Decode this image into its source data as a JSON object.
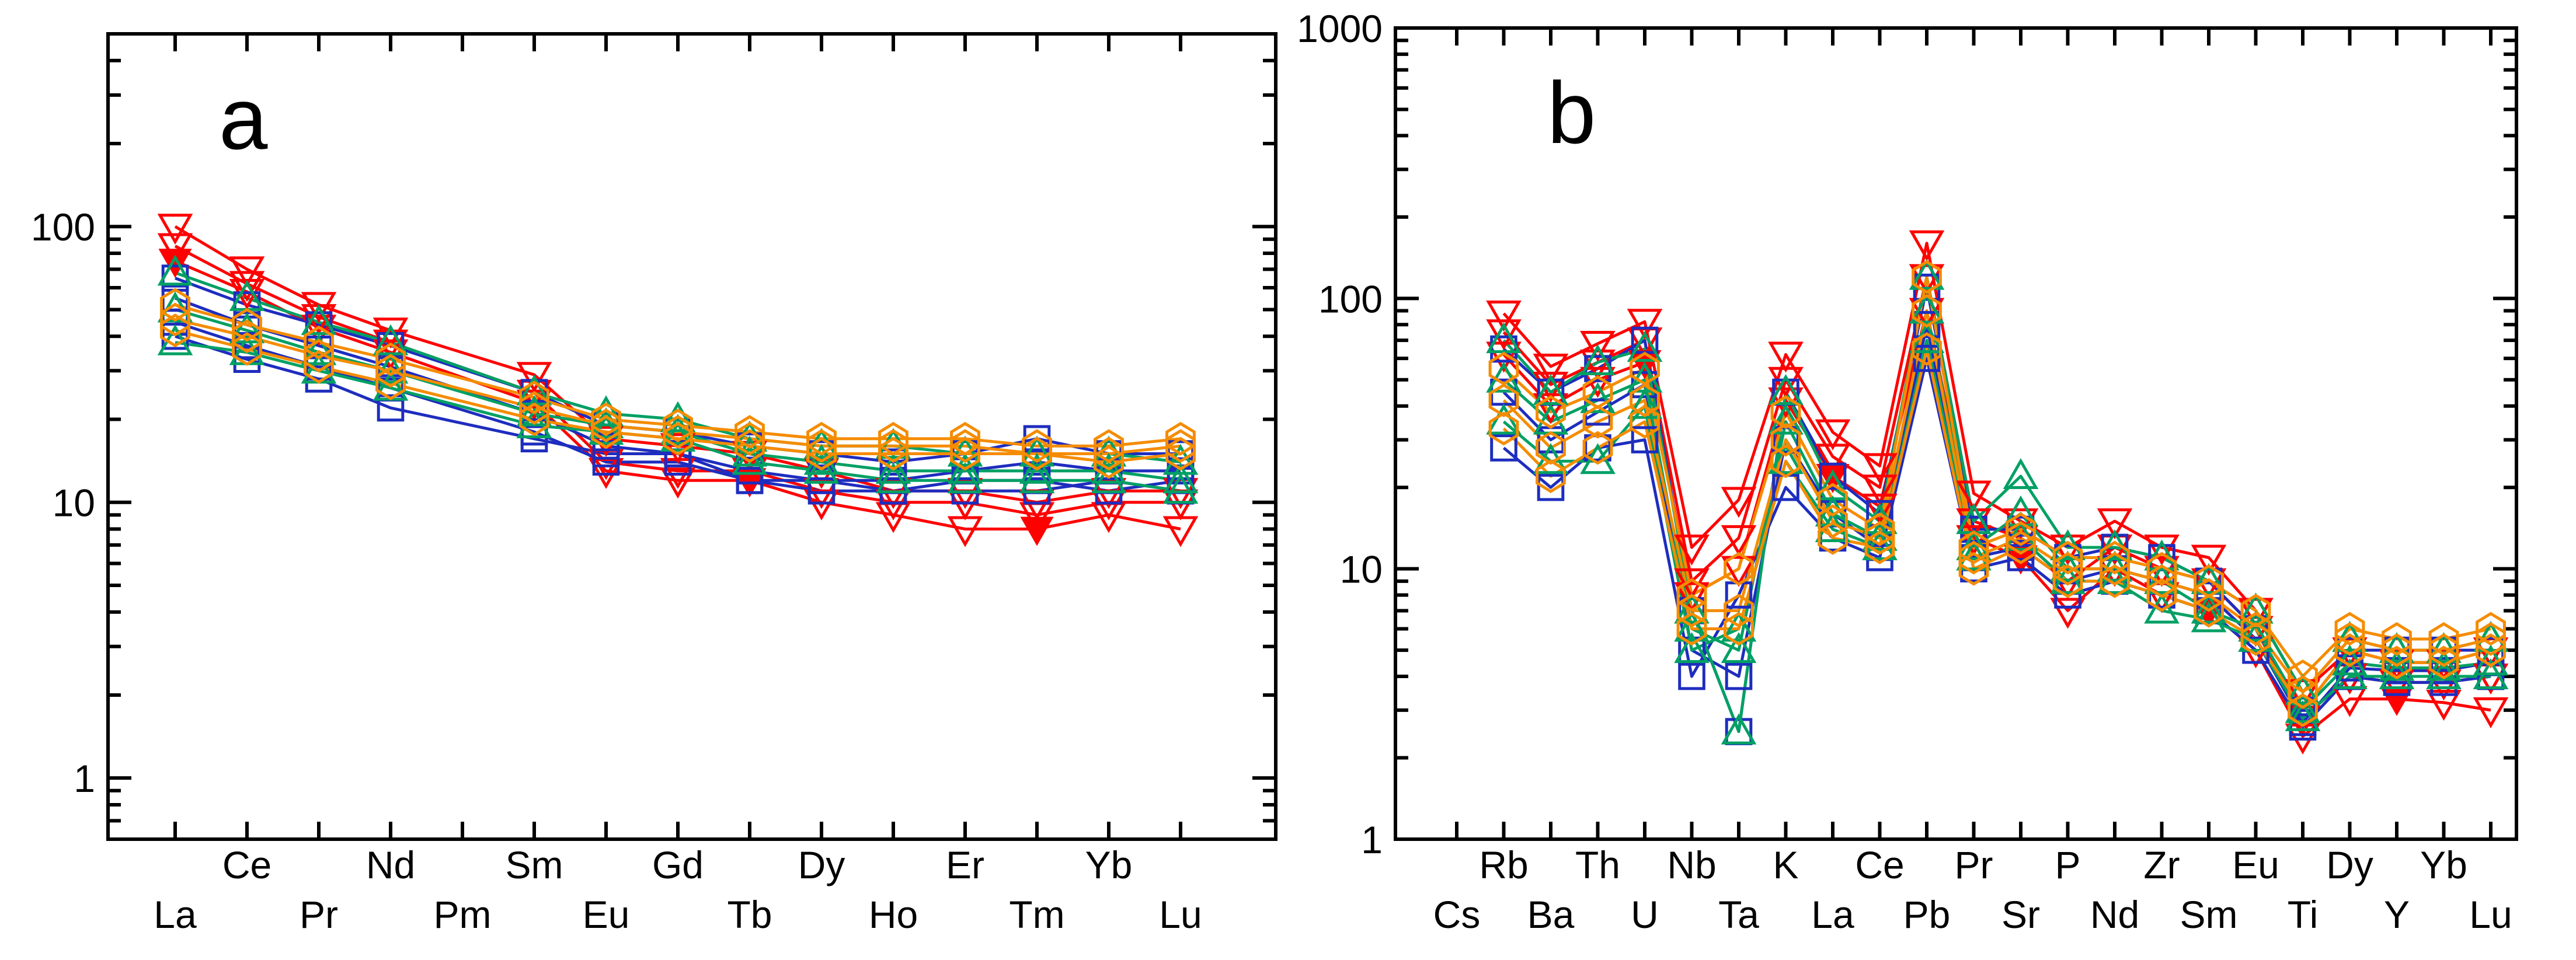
{
  "chart_data": [
    {
      "type": "line",
      "panel_label": "a",
      "yscale": "log",
      "ylim": [
        0.6,
        500
      ],
      "yticks": [
        1,
        10,
        100
      ],
      "ytick_labels": [
        "1",
        "10",
        "100"
      ],
      "categories": [
        "La",
        "Ce",
        "Pr",
        "Nd",
        "Pm",
        "Sm",
        "Eu",
        "Gd",
        "Tb",
        "Dy",
        "Ho",
        "Er",
        "Tm",
        "Yb",
        "Lu"
      ],
      "label_rows": [
        "lower",
        "upper",
        "lower",
        "upper",
        "lower",
        "upper",
        "lower",
        "upper",
        "lower",
        "upper",
        "lower",
        "upper",
        "lower",
        "upper",
        "lower"
      ],
      "series": [
        {
          "name": "red-1",
          "color": "#ff0000",
          "marker": "triangle-down",
          "values": [
            100,
            70,
            52,
            42,
            null,
            29,
            17,
            16,
            15,
            13,
            11,
            11,
            10,
            11,
            11
          ]
        },
        {
          "name": "red-2",
          "color": "#ff0000",
          "marker": "triangle-down",
          "values": [
            85,
            62,
            47,
            38,
            null,
            25,
            14,
            13,
            13,
            11,
            10,
            10,
            9,
            10,
            10
          ]
        },
        {
          "name": "red-3",
          "color": "#ff0000",
          "marker": "triangle-down",
          "values": [
            75,
            58,
            43,
            35,
            null,
            23,
            13,
            12,
            12,
            10,
            9,
            8,
            8,
            9,
            8
          ]
        },
        {
          "name": "blue-1",
          "color": "#1e2dbe",
          "marker": "square",
          "values": [
            65,
            52,
            44,
            37,
            null,
            25,
            19,
            18,
            16,
            15,
            14,
            15,
            17,
            15,
            15
          ]
        },
        {
          "name": "blue-2",
          "color": "#1e2dbe",
          "marker": "square",
          "values": [
            55,
            44,
            37,
            31,
            null,
            21,
            16,
            15,
            13,
            12,
            12,
            13,
            14,
            13,
            13
          ]
        },
        {
          "name": "blue-3",
          "color": "#1e2dbe",
          "marker": "square",
          "values": [
            45,
            37,
            31,
            26,
            null,
            18,
            14,
            14,
            12,
            11,
            11,
            12,
            12,
            11,
            12
          ]
        },
        {
          "name": "blue-4",
          "color": "#1e2dbe",
          "marker": "square",
          "values": [
            40,
            33,
            28,
            22,
            null,
            17,
            15,
            15,
            12,
            12,
            11,
            11,
            11,
            12,
            11
          ]
        },
        {
          "name": "green-1",
          "color": "#00a064",
          "marker": "triangle-up",
          "values": [
            68,
            55,
            45,
            38,
            null,
            25,
            21,
            20,
            17,
            16,
            16,
            15,
            15,
            15,
            14
          ]
        },
        {
          "name": "green-2",
          "color": "#00a064",
          "marker": "triangle-up",
          "values": [
            50,
            42,
            35,
            30,
            null,
            21,
            19,
            18,
            15,
            14,
            13,
            13,
            13,
            13,
            12
          ]
        },
        {
          "name": "green-3",
          "color": "#00a064",
          "marker": "triangle-up",
          "values": [
            38,
            35,
            30,
            26,
            null,
            19,
            18,
            17,
            14,
            13,
            12,
            12,
            12,
            12,
            11
          ]
        },
        {
          "name": "orange-1",
          "color": "#f58c00",
          "marker": "diamond",
          "values": [
            52,
            44,
            38,
            33,
            null,
            24,
            20,
            19,
            18,
            17,
            17,
            17,
            16,
            16,
            17
          ]
        },
        {
          "name": "orange-2",
          "color": "#f58c00",
          "marker": "diamond",
          "values": [
            46,
            40,
            34,
            30,
            null,
            22,
            19,
            18,
            17,
            16,
            16,
            16,
            15,
            15,
            16
          ]
        },
        {
          "name": "orange-3",
          "color": "#f58c00",
          "marker": "diamond",
          "values": [
            42,
            36,
            31,
            27,
            null,
            20,
            18,
            17,
            16,
            15,
            15,
            15,
            15,
            14,
            15
          ]
        }
      ]
    },
    {
      "type": "line",
      "panel_label": "b",
      "yscale": "log",
      "ylim": [
        1,
        1000
      ],
      "yticks": [
        1,
        10,
        100,
        1000
      ],
      "ytick_labels": [
        "1",
        "10",
        "100",
        "1000"
      ],
      "categories": [
        "Cs",
        "Rb",
        "Ba",
        "Th",
        "U",
        "Nb",
        "Ta",
        "K",
        "La",
        "Ce",
        "Pb",
        "Pr",
        "Sr",
        "P",
        "Nd",
        "Zr",
        "Sm",
        "Eu",
        "Ti",
        "Dy",
        "Y",
        "Yb",
        "Lu"
      ],
      "label_rows": [
        "lower",
        "upper",
        "lower",
        "upper",
        "lower",
        "upper",
        "lower",
        "upper",
        "lower",
        "upper",
        "lower",
        "upper",
        "lower",
        "upper",
        "lower",
        "upper",
        "lower",
        "upper",
        "lower",
        "upper",
        "lower",
        "upper",
        "lower"
      ],
      "series": [
        {
          "name": "red-1",
          "color": "#ff0000",
          "marker": "triangle-down",
          "values": [
            null,
            88,
            56,
            68,
            82,
            12,
            18,
            62,
            32,
            24,
            160,
            19,
            15,
            12,
            15,
            12,
            11,
            7,
            3.5,
            5,
            4.5,
            4.5,
            5
          ]
        },
        {
          "name": "red-2",
          "color": "#ff0000",
          "marker": "triangle-down",
          "values": [
            null,
            75,
            48,
            58,
            70,
            9,
            13,
            50,
            26,
            20,
            120,
            15,
            13,
            9,
            12,
            10,
            9,
            6,
            2.8,
            4,
            3.8,
            3.8,
            4
          ]
        },
        {
          "name": "red-3",
          "color": "#ff0000",
          "marker": "triangle-down",
          "values": [
            null,
            62,
            40,
            50,
            58,
            8,
            10,
            42,
            22,
            17,
            90,
            13,
            11,
            7,
            10,
            8,
            7,
            5,
            2.4,
            3.3,
            3.3,
            3.2,
            3
          ]
        },
        {
          "name": "blue-1",
          "color": "#1e2dbe",
          "marker": "square",
          "values": [
            null,
            65,
            45,
            55,
            70,
            7,
            2.5,
            45,
            22,
            16,
            110,
            14,
            14,
            11,
            12,
            11,
            9,
            6,
            3,
            5,
            5,
            5,
            5
          ]
        },
        {
          "name": "blue-2",
          "color": "#1e2dbe",
          "marker": "square",
          "values": [
            null,
            45,
            30,
            38,
            48,
            5,
            4,
            30,
            16,
            12,
            80,
            11,
            12,
            9,
            10,
            9,
            8,
            5.5,
            2.7,
            4.3,
            4.2,
            4.2,
            4.5
          ]
        },
        {
          "name": "blue-3",
          "color": "#1e2dbe",
          "marker": "square",
          "values": [
            null,
            28,
            20,
            28,
            30,
            4,
            8,
            20,
            13,
            11,
            60,
            10,
            11,
            8,
            9,
            8,
            7,
            5,
            2.6,
            4,
            3.8,
            3.8,
            4
          ]
        },
        {
          "name": "green-1",
          "color": "#00a064",
          "marker": "triangle-up",
          "values": [
            null,
            70,
            45,
            58,
            65,
            7,
            2.5,
            45,
            20,
            15,
            120,
            15,
            22,
            12,
            12,
            11,
            9,
            7,
            3.5,
            5.5,
            5,
            5,
            5.5
          ]
        },
        {
          "name": "green-2",
          "color": "#00a064",
          "marker": "triangle-up",
          "values": [
            null,
            50,
            35,
            42,
            50,
            6,
            5,
            35,
            16,
            13,
            90,
            12,
            16,
            10,
            10,
            9,
            7,
            6,
            3,
            4.5,
            4.3,
            4.3,
            4.5
          ]
        },
        {
          "name": "green-3",
          "color": "#00a064",
          "marker": "triangle-up",
          "values": [
            null,
            35,
            25,
            25,
            40,
            5,
            6,
            25,
            14,
            12,
            70,
            11,
            13,
            9,
            9,
            7,
            6.5,
            5.5,
            2.8,
            4,
            4,
            4,
            4
          ]
        },
        {
          "name": "orange-1",
          "color": "#f58c00",
          "marker": "diamond",
          "values": [
            null,
            55,
            38,
            45,
            55,
            8,
            10,
            38,
            18,
            14,
            120,
            12,
            14,
            11,
            11,
            10,
            9,
            7,
            4,
            6,
            5.5,
            5.5,
            6
          ]
        },
        {
          "name": "orange-2",
          "color": "#f58c00",
          "marker": "diamond",
          "values": [
            null,
            42,
            28,
            35,
            42,
            7,
            7,
            30,
            15,
            13,
            90,
            11,
            13,
            10,
            10,
            9,
            8,
            6,
            3.5,
            5.5,
            5,
            5,
            5.5
          ]
        },
        {
          "name": "orange-3",
          "color": "#f58c00",
          "marker": "diamond",
          "values": [
            null,
            33,
            22,
            28,
            35,
            6,
            6,
            25,
            13,
            12,
            65,
            10,
            12,
            9,
            9,
            8,
            7,
            5.5,
            3,
            5,
            4.5,
            4.5,
            5
          ]
        }
      ]
    }
  ]
}
